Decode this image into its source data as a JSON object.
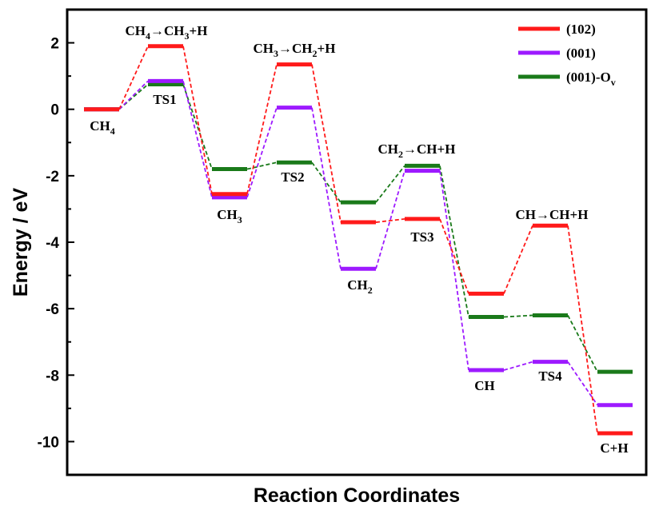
{
  "chart_data": {
    "type": "line",
    "xlabel": "Reaction Coordinates",
    "ylabel": "Energy / eV",
    "ylim": [
      -11,
      3
    ],
    "yticks": [
      2,
      0,
      -2,
      -4,
      -6,
      -8,
      -10
    ],
    "ytick_labels": [
      "2",
      "0",
      "-2",
      "-4",
      "-6",
      "-8",
      "-10"
    ],
    "legend_position": "top-right",
    "series": [
      {
        "name": "(102)",
        "color": "#ff1a1a",
        "values": [
          0,
          1.9,
          -2.55,
          1.35,
          -3.4,
          -3.3,
          -5.55,
          -3.5,
          -9.75
        ]
      },
      {
        "name": "(001)",
        "color": "#9d1aff",
        "values": [
          0,
          0.85,
          -2.65,
          0.05,
          -4.8,
          -1.85,
          -7.85,
          -7.6,
          -8.9
        ]
      },
      {
        "name": "(001)-O",
        "name_sub": "v",
        "color": "#1a7a1a",
        "values": [
          0,
          0.75,
          -1.8,
          -1.6,
          -2.8,
          -1.7,
          -6.25,
          -6.2,
          -7.9
        ]
      }
    ],
    "annotations": [
      {
        "parts": [
          [
            "CH",
            ""
          ],
          [
            "4",
            "sub"
          ],
          [
            "→CH",
            ""
          ],
          [
            "3",
            "sub"
          ],
          [
            "+H",
            ""
          ]
        ]
      },
      {
        "parts": [
          [
            "CH",
            ""
          ],
          [
            "3",
            "sub"
          ],
          [
            "→CH",
            ""
          ],
          [
            "2",
            "sub"
          ],
          [
            "+H",
            ""
          ]
        ]
      },
      {
        "parts": [
          [
            "CH",
            ""
          ],
          [
            "2",
            "sub"
          ],
          [
            "→CH+H",
            ""
          ]
        ]
      },
      {
        "parts": [
          [
            "CH→CH+H",
            ""
          ]
        ]
      },
      {
        "parts": [
          [
            "CH",
            ""
          ],
          [
            "4",
            "sub"
          ]
        ]
      },
      {
        "parts": [
          [
            "TS1",
            ""
          ]
        ]
      },
      {
        "parts": [
          [
            "CH",
            ""
          ],
          [
            "3",
            "sub"
          ]
        ]
      },
      {
        "parts": [
          [
            "TS2",
            ""
          ]
        ]
      },
      {
        "parts": [
          [
            "CH",
            ""
          ],
          [
            "2",
            "sub"
          ]
        ]
      },
      {
        "parts": [
          [
            "TS3",
            ""
          ]
        ]
      },
      {
        "parts": [
          [
            "CH",
            ""
          ]
        ]
      },
      {
        "parts": [
          [
            "TS4",
            ""
          ]
        ]
      },
      {
        "parts": [
          [
            "C+H",
            ""
          ]
        ]
      }
    ]
  }
}
